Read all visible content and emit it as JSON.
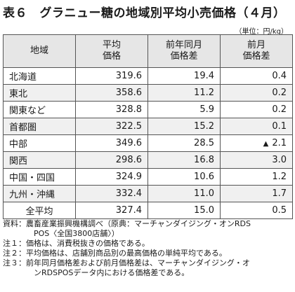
{
  "title": "表６　グラニュー糖の地域別平均小売価格（４月）",
  "unit": "（単位：円/kg）",
  "table": {
    "headers": {
      "region": "地域",
      "price": [
        "平均",
        "価格"
      ],
      "yoy": [
        "前年同月",
        "価格差"
      ],
      "mom": [
        "前月",
        "価格差"
      ]
    },
    "rows": [
      {
        "region": "北海道",
        "price": "319.6",
        "yoy": "19.4",
        "mom_prefix": "",
        "mom": "0.4"
      },
      {
        "region": "東北",
        "price": "358.6",
        "yoy": "11.2",
        "mom_prefix": "",
        "mom": "0.2"
      },
      {
        "region": "関東など",
        "price": "328.8",
        "yoy": "5.9",
        "mom_prefix": "",
        "mom": "0.2"
      },
      {
        "region": "首都圏",
        "price": "322.5",
        "yoy": "15.2",
        "mom_prefix": "",
        "mom": "0.1"
      },
      {
        "region": "中部",
        "price": "349.6",
        "yoy": "28.5",
        "mom_prefix": "▲",
        "mom": "2.1"
      },
      {
        "region": "関西",
        "price": "298.6",
        "yoy": "16.8",
        "mom_prefix": "",
        "mom": "3.0"
      },
      {
        "region": "中国・四国",
        "price": "324.9",
        "yoy": "10.6",
        "mom_prefix": "",
        "mom": "1.2"
      },
      {
        "region": "九州・沖縄",
        "price": "332.4",
        "yoy": "11.0",
        "mom_prefix": "",
        "mom": "1.7"
      },
      {
        "region": "全平均",
        "price": "327.4",
        "yoy": "15.0",
        "mom_prefix": "",
        "mom": "0.5"
      }
    ]
  },
  "notes": {
    "source_label": "資料：",
    "source_line1": "農畜産業振興機構調べ（原典：マーチャンダイジング・オンRDS",
    "source_line2": "POS〈全国3800店舗〉）",
    "note1_label": "注１：",
    "note1": "価格は、消費税抜きの価格である。",
    "note2_label": "注２：",
    "note2": "平均価格は、店舗別商品別の最高価格の単純平均である。",
    "note3_label": "注３：",
    "note3_line1": "前年同月価格差および前月価格差は、マーチャンダイジング・オ",
    "note3_line2": "ンRDSPOSデータ内における価格差である。"
  }
}
